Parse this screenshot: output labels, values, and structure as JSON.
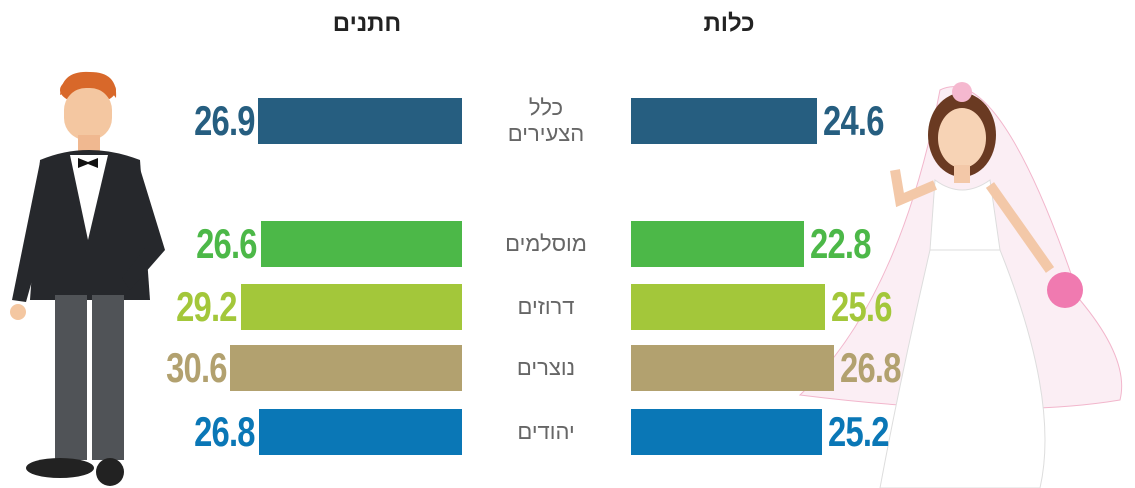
{
  "chart_data": {
    "type": "butterfly-bar",
    "categories": [
      "כלל הצעירים",
      "מוסלמים",
      "דרוזים",
      "נוצרים",
      "יהודים"
    ],
    "colors": [
      "#265e80",
      "#4cb848",
      "#a3c73a",
      "#b2a16f",
      "#0a77b6"
    ],
    "series": [
      {
        "name": "חתנים",
        "values": [
          26.9,
          26.6,
          29.2,
          30.6,
          26.8
        ]
      },
      {
        "name": "כלות",
        "values": [
          24.6,
          22.8,
          25.6,
          26.8,
          25.2
        ]
      }
    ]
  }
}
